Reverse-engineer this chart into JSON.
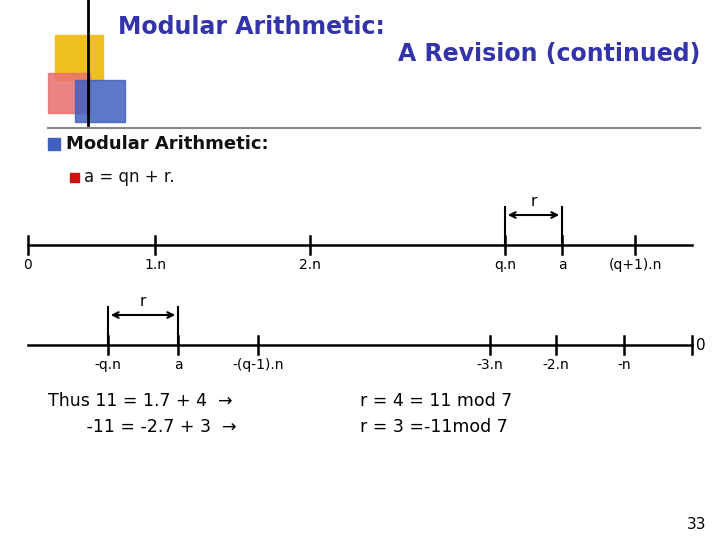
{
  "title_line1": "Modular Arithmetic:",
  "title_line2": "A Revision (continued)",
  "title_color": "#3333aa",
  "bg_color": "#ffffff",
  "bullet1": "Modular Arithmetic:",
  "bullet2": "a = qn + r.",
  "slide_number": "33",
  "logo_yellow": "#f0c020",
  "logo_red": "#e87070",
  "logo_blue": "#4060c0",
  "text_color": "#111111",
  "bottom_left1": "Thus 11 = 1.7 + 4  →",
  "bottom_left2": "       -11 = -2.7 + 3  →",
  "bottom_right1": "r = 4 = 11 mod 7",
  "bottom_right2": "r = 3 =-11mod 7"
}
